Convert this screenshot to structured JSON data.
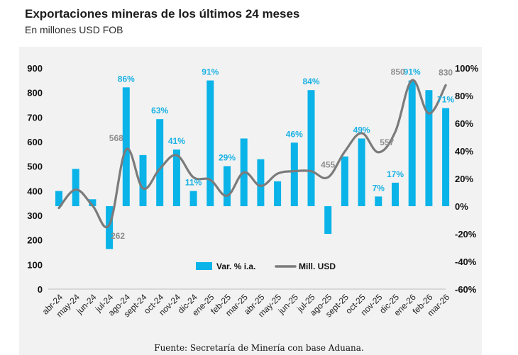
{
  "header": {
    "title": "Exportaciones mineras de los últimos 24 meses",
    "subtitle": "En millones USD FOB"
  },
  "footer": {
    "source": "Fuente: Secretaría de Minería con base Aduana."
  },
  "chart_data": {
    "type": "bar",
    "categories": [
      "abr-24",
      "may-24",
      "jun-24",
      "jul-24",
      "ago-24",
      "sept-24",
      "oct-24",
      "nov-24",
      "dic-24",
      "ene-25",
      "feb-25",
      "mar-25",
      "abr-25",
      "may-25",
      "jun-25",
      "jul-25",
      "ago-25",
      "sept-25",
      "oct-25",
      "nov-25",
      "dic-25",
      "ene-26",
      "feb-26",
      "mar-26"
    ],
    "series": [
      {
        "name": "Var. % i.a.",
        "kind": "bar",
        "axis": "right",
        "values": [
          11,
          27,
          5,
          -31,
          86,
          37,
          63,
          41,
          11,
          91,
          29,
          49,
          34,
          18,
          46,
          84,
          -20,
          36,
          49,
          7,
          17,
          91,
          84,
          71
        ]
      },
      {
        "name": "Mill. USD",
        "kind": "line",
        "axis": "left",
        "values": [
          330,
          405,
          340,
          262,
          568,
          410,
          490,
          545,
          455,
          445,
          380,
          475,
          420,
          470,
          480,
          480,
          455,
          560,
          635,
          557,
          640,
          850,
          715,
          830
        ]
      }
    ],
    "bar_labels": [
      {
        "index": 4,
        "text": "86%"
      },
      {
        "index": 6,
        "text": "63%"
      },
      {
        "index": 7,
        "text": "41%"
      },
      {
        "index": 8,
        "text": "11%"
      },
      {
        "index": 9,
        "text": "91%"
      },
      {
        "index": 10,
        "text": "29%"
      },
      {
        "index": 14,
        "text": "46%"
      },
      {
        "index": 15,
        "text": "84%"
      },
      {
        "index": 18,
        "text": "49%"
      },
      {
        "index": 19,
        "text": "7%"
      },
      {
        "index": 20,
        "text": "17%"
      },
      {
        "index": 21,
        "text": "91%"
      },
      {
        "index": 23,
        "text": "71%"
      }
    ],
    "line_labels": [
      {
        "index": 3,
        "text": "262"
      },
      {
        "index": 4,
        "text": "568"
      },
      {
        "index": 16,
        "text": "455"
      },
      {
        "index": 19,
        "text": "557"
      },
      {
        "index": 21,
        "text": "850"
      },
      {
        "index": 23,
        "text": "830"
      }
    ],
    "left_axis": {
      "min": 0,
      "max": 900,
      "ticks": [
        "0",
        "100",
        "200",
        "300",
        "400",
        "500",
        "600",
        "700",
        "800",
        "900"
      ]
    },
    "right_axis": {
      "min": -60,
      "max": 100,
      "ticks": [
        "-60%",
        "-40%",
        "-20%",
        "0%",
        "20%",
        "40%",
        "60%",
        "80%",
        "100%"
      ]
    },
    "legend": {
      "position": "bottom-center",
      "items": [
        "Var. % i.a.",
        "Mill. USD"
      ]
    },
    "grid": false,
    "colors": {
      "bar": "#0ab3e8",
      "line": "#7b7b7b",
      "bar_label": "#1ab2e4",
      "line_label": "#8e8e8e"
    }
  }
}
